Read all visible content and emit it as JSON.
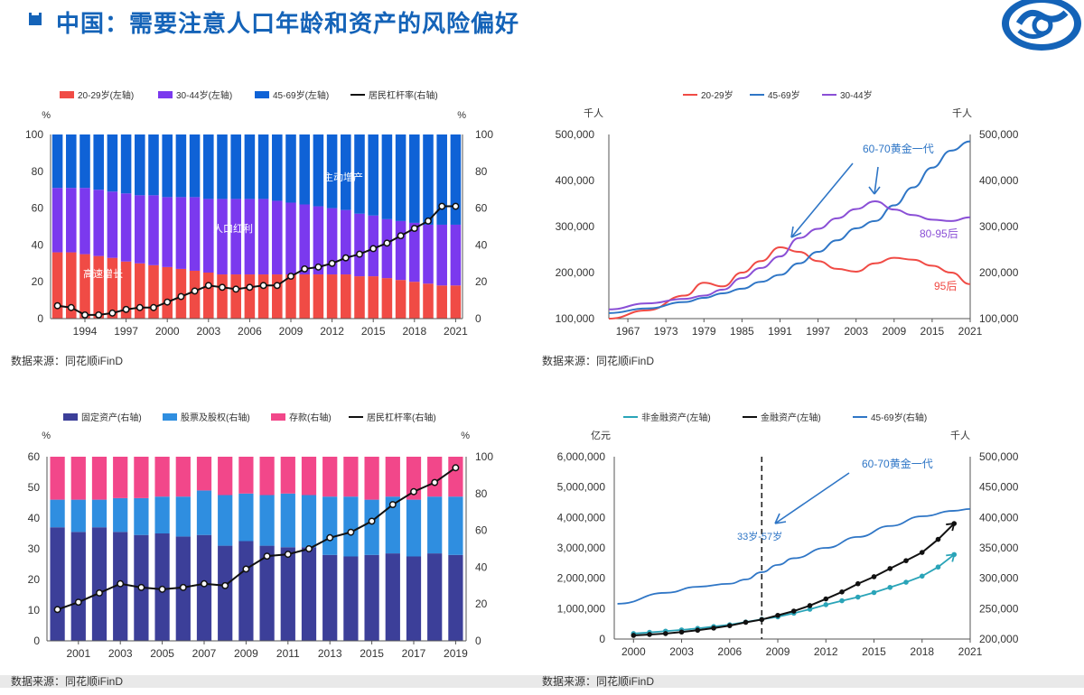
{
  "page": {
    "title": "中国：需要注意人口年龄和资产的风险偏好",
    "source_note": "数据来源：同花顺iFinD"
  },
  "colors": {
    "brand": "#1463b8",
    "red": "#f04b45",
    "purple": "#7b39ee",
    "blue": "#0f62d6",
    "line_black": "#111111",
    "pink": "#f2478a",
    "navy": "#3c3f99",
    "sky": "#2f8ee0",
    "teal": "#2aa4b8",
    "purple_line": "#8a4fd6",
    "blue_line": "#2f76c6"
  },
  "icons": [
    "title-square-icon",
    "brand-logo-icon"
  ],
  "chart_data": [
    {
      "id": "c1",
      "type": "bar",
      "stacked": true,
      "left_unit": "%",
      "right_unit": "%",
      "categories": [
        "1992",
        "1993",
        "1994",
        "1995",
        "1996",
        "1997",
        "1998",
        "1999",
        "2000",
        "2001",
        "2002",
        "2003",
        "2004",
        "2005",
        "2006",
        "2007",
        "2008",
        "2009",
        "2010",
        "2011",
        "2012",
        "2013",
        "2014",
        "2015",
        "2016",
        "2017",
        "2018",
        "2019",
        "2020",
        "2021"
      ],
      "x_ticks": [
        "1994",
        "1997",
        "2000",
        "2003",
        "2006",
        "2009",
        "2012",
        "2015",
        "2018",
        "2021"
      ],
      "y_left": {
        "range": [
          0,
          100
        ],
        "ticks": [
          "0",
          "20",
          "40",
          "60",
          "80",
          "100"
        ]
      },
      "y_right": {
        "range": [
          0,
          100
        ],
        "ticks": [
          "0",
          "20",
          "40",
          "60",
          "80",
          "100"
        ]
      },
      "series": [
        {
          "name": "20-29岁(左轴)",
          "axis": "left",
          "values": [
            36,
            36,
            35,
            34,
            33,
            31,
            30,
            29,
            28,
            27,
            26,
            25,
            24,
            24,
            24,
            24,
            24,
            24,
            24,
            24,
            24,
            24,
            23,
            23,
            22,
            21,
            20,
            19,
            18,
            18
          ]
        },
        {
          "name": "30-44岁(左轴)",
          "axis": "left",
          "values": [
            35,
            35,
            36,
            36,
            36,
            37,
            37,
            38,
            38,
            39,
            40,
            40,
            41,
            41,
            41,
            41,
            40,
            39,
            38,
            37,
            36,
            35,
            34,
            33,
            32,
            32,
            32,
            32,
            33,
            33
          ]
        },
        {
          "name": "45-69岁(左轴)",
          "axis": "left",
          "values": [
            29,
            29,
            29,
            30,
            31,
            32,
            33,
            33,
            34,
            34,
            34,
            35,
            35,
            35,
            35,
            35,
            36,
            37,
            38,
            39,
            40,
            41,
            43,
            44,
            46,
            47,
            48,
            49,
            49,
            49
          ]
        },
        {
          "name": "居民杠杆率(右轴)",
          "axis": "right",
          "type": "line",
          "values": [
            7,
            6,
            2,
            2,
            3,
            5,
            6,
            6,
            9,
            12,
            15,
            18,
            17,
            16,
            17,
            18,
            18,
            23,
            27,
            28,
            30,
            33,
            35,
            38,
            41,
            45,
            49,
            53,
            61,
            61
          ]
        }
      ],
      "annotations": [
        "主动增产",
        "人口红利",
        "高速增长"
      ]
    },
    {
      "id": "c2",
      "type": "line",
      "left_unit": "千人",
      "right_unit": "千人",
      "x_ticks": [
        "1967",
        "1973",
        "1979",
        "1985",
        "1991",
        "1997",
        "2003",
        "2009",
        "2015",
        "2021"
      ],
      "y_left": {
        "range": [
          100000,
          500000
        ],
        "ticks": [
          "100,000",
          "200,000",
          "300,000",
          "400,000",
          "500,000"
        ]
      },
      "y_right": {
        "range": [
          100000,
          500000
        ],
        "ticks": [
          "100,000",
          "200,000",
          "300,000",
          "400,000",
          "500,000"
        ]
      },
      "x": [
        1964,
        1970,
        1976,
        1979,
        1982,
        1985,
        1988,
        1991,
        1994,
        1997,
        2000,
        2003,
        2006,
        2009,
        2012,
        2015,
        2018,
        2021
      ],
      "series": [
        {
          "name": "20-29岁",
          "values": [
            100000,
            118000,
            150000,
            178000,
            170000,
            200000,
            225000,
            255000,
            245000,
            225000,
            208000,
            202000,
            220000,
            232000,
            228000,
            215000,
            200000,
            175000
          ]
        },
        {
          "name": "45-69岁",
          "values": [
            112000,
            122000,
            136000,
            145000,
            155000,
            165000,
            180000,
            195000,
            220000,
            245000,
            270000,
            296000,
            312000,
            346000,
            385000,
            428000,
            465000,
            485000
          ]
        },
        {
          "name": "30-44岁",
          "values": [
            120000,
            133000,
            143000,
            150000,
            163000,
            188000,
            210000,
            235000,
            275000,
            295000,
            318000,
            338000,
            355000,
            337000,
            325000,
            315000,
            312000,
            320000
          ]
        }
      ],
      "annotations": [
        "60-70黄金一代",
        "80-95后",
        "95后"
      ]
    },
    {
      "id": "c3",
      "type": "bar",
      "stacked": true,
      "left_unit": "%",
      "right_unit": "%",
      "categories": [
        "2000",
        "2001",
        "2002",
        "2003",
        "2004",
        "2005",
        "2006",
        "2007",
        "2008",
        "2009",
        "2010",
        "2011",
        "2012",
        "2013",
        "2014",
        "2015",
        "2016",
        "2017",
        "2018",
        "2019"
      ],
      "x_ticks": [
        "2001",
        "2003",
        "2005",
        "2007",
        "2009",
        "2011",
        "2013",
        "2015",
        "2017",
        "2019"
      ],
      "y_left": {
        "range": [
          0,
          60
        ],
        "ticks": [
          "0",
          "10",
          "20",
          "30",
          "40",
          "50",
          "60"
        ]
      },
      "y_right": {
        "range": [
          0,
          100
        ],
        "ticks": [
          "0",
          "20",
          "40",
          "60",
          "80",
          "100"
        ]
      },
      "series": [
        {
          "name": "固定资产(右轴)",
          "axis": "left",
          "values": [
            37,
            35.5,
            37,
            35.5,
            34.5,
            35,
            34,
            34.5,
            31,
            32.5,
            31,
            30.5,
            30.5,
            28,
            27.5,
            28,
            28.5,
            27.5,
            28.5,
            28
          ]
        },
        {
          "name": "股票及股权(右轴)",
          "axis": "left",
          "values": [
            9,
            10.5,
            9,
            11,
            12,
            12,
            13,
            14.5,
            16.5,
            15.5,
            16.5,
            17.5,
            17,
            19,
            19.5,
            18,
            18.5,
            18.5,
            18.5,
            19
          ]
        },
        {
          "name": "存款(右轴)",
          "axis": "left",
          "values": [
            14,
            14,
            14,
            13.5,
            13.5,
            13,
            13,
            11,
            12.5,
            12,
            12.5,
            12,
            12.5,
            13,
            13,
            14,
            13,
            14,
            13,
            13
          ]
        },
        {
          "name": "居民杠杆率(右轴)",
          "axis": "right",
          "type": "line",
          "values": [
            17,
            21,
            26,
            31,
            29,
            28,
            29,
            31,
            30,
            39,
            46,
            47,
            50,
            56,
            59,
            65,
            74,
            81,
            86,
            94
          ]
        }
      ]
    },
    {
      "id": "c4",
      "type": "line",
      "left_unit": "亿元",
      "right_unit": "千人",
      "x_ticks": [
        "2000",
        "2003",
        "2006",
        "2009",
        "2012",
        "2015",
        "2018",
        "2021"
      ],
      "y_left": {
        "range": [
          0,
          6000000
        ],
        "ticks": [
          "0",
          "1,000,000",
          "2,000,000",
          "3,000,000",
          "4,000,000",
          "5,000,000",
          "6,000,000"
        ]
      },
      "y_right": {
        "range": [
          200000,
          500000
        ],
        "ticks": [
          "200,000",
          "250,000",
          "300,000",
          "350,000",
          "400,000",
          "450,000",
          "500,000"
        ]
      },
      "x": [
        2000,
        2001,
        2002,
        2003,
        2004,
        2005,
        2006,
        2007,
        2008,
        2009,
        2010,
        2011,
        2012,
        2013,
        2014,
        2015,
        2016,
        2017,
        2018,
        2019,
        2020
      ],
      "series": [
        {
          "name": "非金融资产(左轴)",
          "axis": "left",
          "values": [
            180000,
            220000,
            260000,
            300000,
            350000,
            410000,
            470000,
            560000,
            650000,
            730000,
            850000,
            980000,
            1130000,
            1260000,
            1380000,
            1530000,
            1700000,
            1870000,
            2070000,
            2370000,
            2780000
          ]
        },
        {
          "name": "金融资产(左轴)",
          "axis": "left",
          "values": [
            120000,
            150000,
            180000,
            230000,
            290000,
            360000,
            440000,
            550000,
            640000,
            780000,
            920000,
            1100000,
            1320000,
            1550000,
            1820000,
            2050000,
            2320000,
            2580000,
            2850000,
            3280000,
            3800000
          ]
        },
        {
          "name": "45-69岁(右轴)",
          "axis": "right",
          "x": [
            1999,
            2002,
            2004,
            2006,
            2007,
            2008,
            2009,
            2010,
            2012,
            2014,
            2016,
            2018,
            2020,
            2021
          ],
          "values": [
            258000,
            276000,
            286000,
            291000,
            298000,
            310000,
            322000,
            333000,
            350000,
            368000,
            386000,
            402000,
            411000,
            414000
          ]
        }
      ],
      "marker_x": 2008,
      "annotations": [
        "60-70黄金一代",
        "33岁-57岁"
      ]
    }
  ]
}
